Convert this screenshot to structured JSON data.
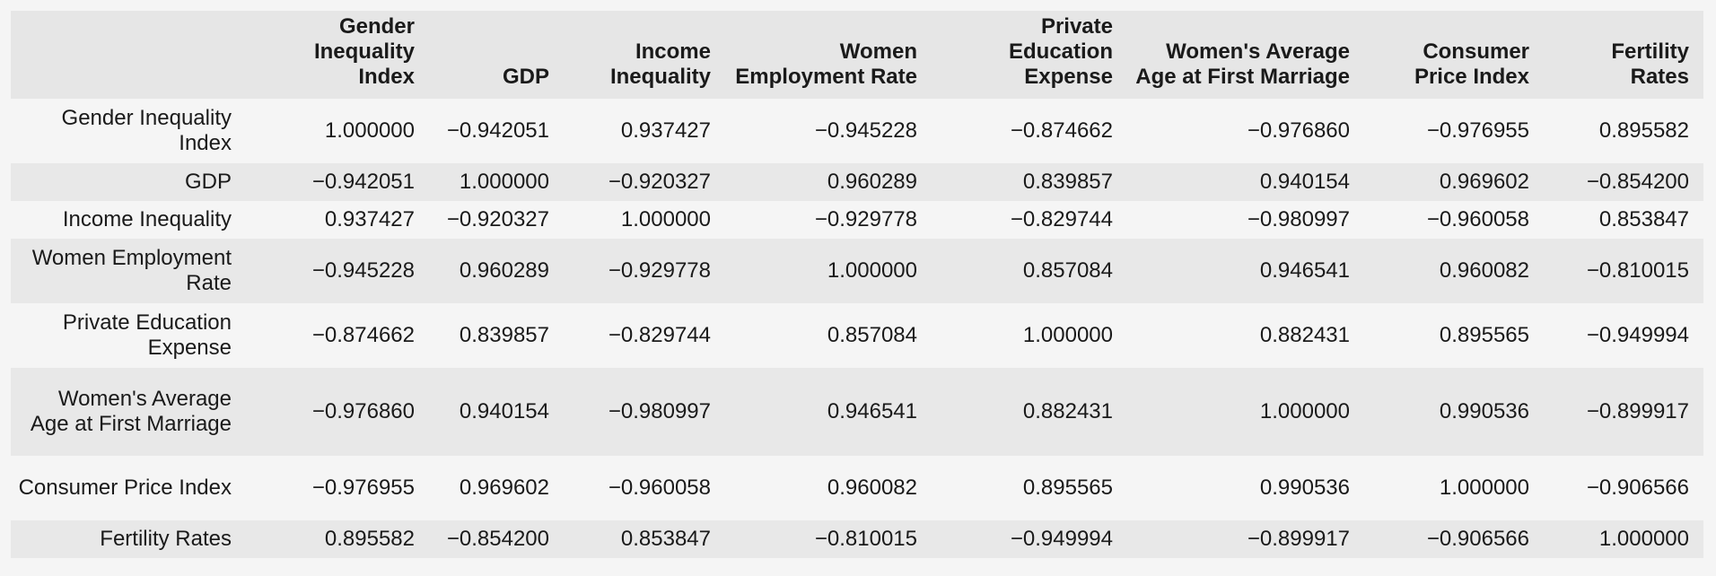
{
  "table": {
    "corner": "",
    "columns": [
      "Gender Inequality Index",
      "GDP",
      "Income Inequality",
      "Women Employment Rate",
      "Private Education Expense",
      "Women's Average Age at First Marriage",
      "Consumer Price Index",
      "Fertility Rates"
    ],
    "rows": [
      {
        "label": "Gender Inequality Index",
        "values": [
          "1.000000",
          "−0.942051",
          "0.937427",
          "−0.945228",
          "−0.874662",
          "−0.976860",
          "−0.976955",
          "0.895582"
        ]
      },
      {
        "label": "GDP",
        "values": [
          "−0.942051",
          "1.000000",
          "−0.920327",
          "0.960289",
          "0.839857",
          "0.940154",
          "0.969602",
          "−0.854200"
        ]
      },
      {
        "label": "Income Inequality",
        "values": [
          "0.937427",
          "−0.920327",
          "1.000000",
          "−0.929778",
          "−0.829744",
          "−0.980997",
          "−0.960058",
          "0.853847"
        ]
      },
      {
        "label": "Women Employment Rate",
        "values": [
          "−0.945228",
          "0.960289",
          "−0.929778",
          "1.000000",
          "0.857084",
          "0.946541",
          "0.960082",
          "−0.810015"
        ]
      },
      {
        "label": "Private Education Expense",
        "values": [
          "−0.874662",
          "0.839857",
          "−0.829744",
          "0.857084",
          "1.000000",
          "0.882431",
          "0.895565",
          "−0.949994"
        ]
      },
      {
        "label": "Women's Average Age at First Marriage",
        "values": [
          "−0.976860",
          "0.940154",
          "−0.980997",
          "0.946541",
          "0.882431",
          "1.000000",
          "0.990536",
          "−0.899917"
        ]
      },
      {
        "label": "Consumer Price Index",
        "values": [
          "−0.976955",
          "0.969602",
          "−0.960058",
          "0.960082",
          "0.895565",
          "0.990536",
          "1.000000",
          "−0.906566"
        ]
      },
      {
        "label": "Fertility Rates",
        "values": [
          "0.895582",
          "−0.854200",
          "0.853847",
          "−0.810015",
          "−0.949994",
          "−0.899917",
          "−0.906566",
          "1.000000"
        ]
      }
    ]
  }
}
